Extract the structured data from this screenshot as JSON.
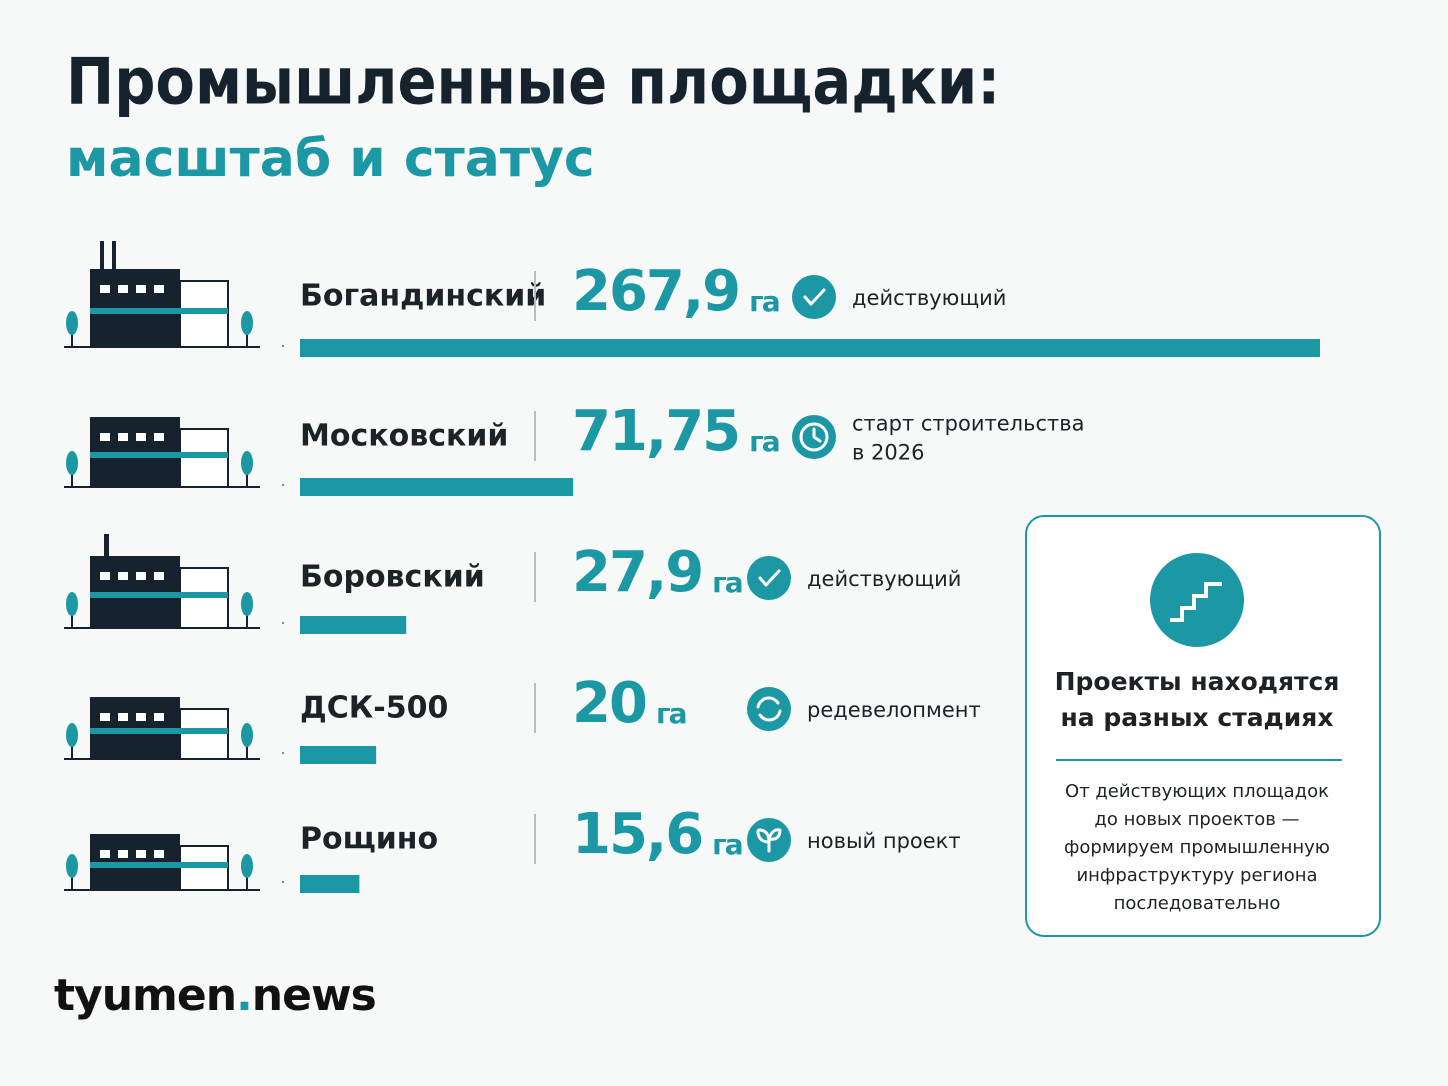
{
  "chart_data": {
    "type": "bar",
    "orientation": "horizontal",
    "title": "Промышленные площадки:",
    "subtitle": "масштаб и статус",
    "categories": [
      "Богандинский",
      "Московский",
      "Боровский",
      "ДСК-500",
      "Рощино"
    ],
    "values": [
      267.9,
      71.75,
      27.9,
      20,
      15.6
    ],
    "value_labels": [
      "267,9",
      "71,75",
      "27,9",
      "20",
      "15,6"
    ],
    "unit": "га",
    "color": "#1b98a4",
    "statuses": [
      [
        "действующий"
      ],
      [
        "старт строительства",
        "в 2026"
      ],
      [
        "действующий"
      ],
      [
        "редевелопмент"
      ],
      [
        "новый проект"
      ]
    ]
  },
  "info_box": {
    "title": [
      "Проекты находятся",
      "на разных стадиях"
    ],
    "text": [
      "От действующих площадок",
      "до новых проектов —",
      "формируем промышленную",
      "инфраструктуру региона",
      "последовательно"
    ]
  },
  "logo": {
    "name": "tyumen",
    "dot": ".",
    "domain": "news"
  }
}
